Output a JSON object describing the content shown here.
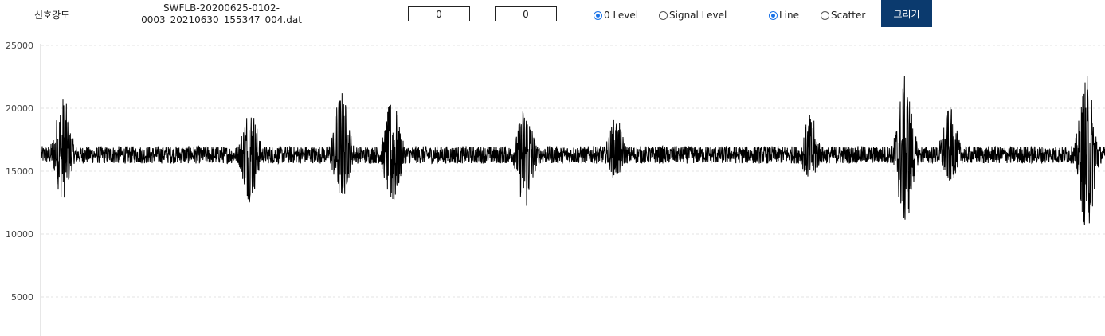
{
  "header": {
    "title_label": "신호강도",
    "filename_line1": "SWFLB-20200625-0102-",
    "filename_line2": "0003_20210630_155347_004.dat",
    "range_start": "0",
    "range_separator": "-",
    "range_end": "0",
    "level_options": [
      {
        "label": "0 Level",
        "selected": true
      },
      {
        "label": "Signal Level",
        "selected": false
      }
    ],
    "plot_options": [
      {
        "label": "Line",
        "selected": true
      },
      {
        "label": "Scatter",
        "selected": false
      }
    ],
    "draw_button": "그리기",
    "draw_button_color": "#0b3a6e"
  },
  "chart_data": {
    "type": "line",
    "xlabel": "",
    "ylabel": "",
    "ylim": [
      2000,
      25000
    ],
    "yticks": [
      5000,
      10000,
      15000,
      20000,
      25000
    ],
    "ytick_labels": [
      "5000",
      "10000",
      "15000",
      "20000",
      "25000"
    ],
    "grid": "horizontal dashed",
    "line_color": "#000000",
    "series": [
      {
        "baseline": 16300,
        "noise_amplitude": 700,
        "bursts": [
          {
            "at": 0.02,
            "peak": 21200,
            "trough": 12700
          },
          {
            "at": 0.196,
            "peak": 20600,
            "trough": 12500
          },
          {
            "at": 0.282,
            "peak": 21600,
            "trough": 12500
          },
          {
            "at": 0.33,
            "peak": 20900,
            "trough": 11800
          },
          {
            "at": 0.455,
            "peak": 20500,
            "trough": 11700
          },
          {
            "at": 0.54,
            "peak": 19300,
            "trough": 14300
          },
          {
            "at": 0.723,
            "peak": 19500,
            "trough": 14000
          },
          {
            "at": 0.812,
            "peak": 22600,
            "trough": 10300
          },
          {
            "at": 0.854,
            "peak": 20100,
            "trough": 14000
          },
          {
            "at": 0.983,
            "peak": 22700,
            "trough": 10000
          }
        ]
      }
    ]
  }
}
